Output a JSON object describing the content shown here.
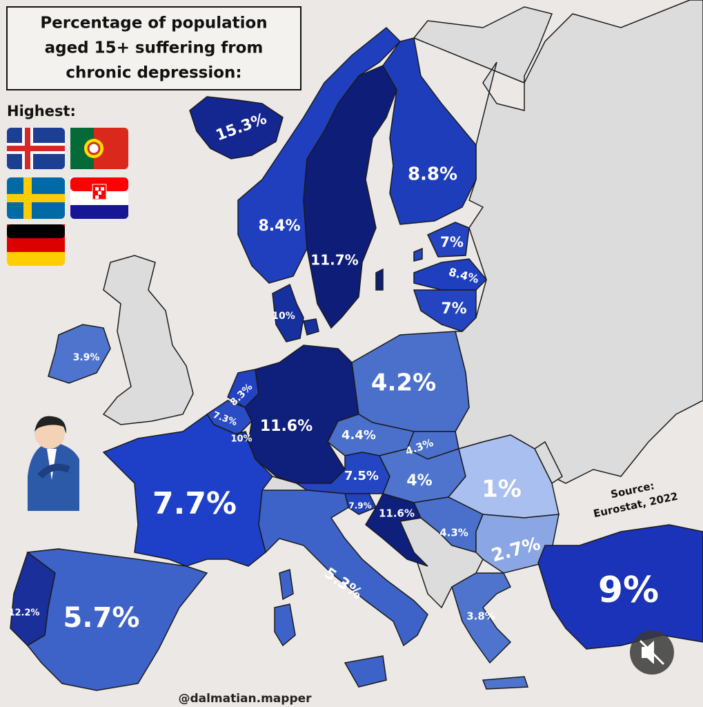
{
  "title": [
    "Percentage of population",
    "aged 15+ suffering from",
    "chronic depression:"
  ],
  "highest_label": "Highest:",
  "regions": [
    {
      "label": "15.3%",
      "color": "#14268f"
    },
    {
      "label": "8.4%",
      "color": "#1f3fbf"
    },
    {
      "label": "11.7%",
      "color": "#0e1e78"
    },
    {
      "label": "8.8%",
      "color": "#1e3dbb"
    },
    {
      "label": "7%",
      "color": "#2444c0"
    },
    {
      "label": "8.4%",
      "color": "#1f3fbf"
    },
    {
      "label": "7%",
      "color": "#2444c0"
    },
    {
      "label": "10%",
      "color": "#16309e"
    },
    {
      "label": "3.9%",
      "color": "#4e74ce"
    },
    {
      "label": "8.3%",
      "color": "#2242c0"
    },
    {
      "label": "7.3%",
      "color": "#2a4cc4"
    },
    {
      "label": "10%",
      "color": "#16309e"
    },
    {
      "label": "11.6%",
      "color": "#0f1f7c"
    },
    {
      "label": "4.2%",
      "color": "#4a70cc"
    },
    {
      "label": "4.4%",
      "color": "#4a70cc"
    },
    {
      "label": "4.3%",
      "color": "#4a70cc"
    },
    {
      "label": "7.5%",
      "color": "#2446c2"
    },
    {
      "label": "4%",
      "color": "#4e74ce"
    },
    {
      "label": "1%",
      "color": "#a9bff0"
    },
    {
      "label": "7.7%",
      "color": "#1e40c8"
    },
    {
      "label": "7.9%",
      "color": "#2244bb"
    },
    {
      "label": "11.6%",
      "color": "#0f1f7c"
    },
    {
      "label": "4.3%",
      "color": "#4a70cc"
    },
    {
      "label": "2.7%",
      "color": "#8aa6e4"
    },
    {
      "label": "5.3%",
      "color": "#3e63c8"
    },
    {
      "label": "12.2%",
      "color": "#1a2f9a"
    },
    {
      "label": "5.7%",
      "color": "#3e63c8"
    },
    {
      "label": "3.8%",
      "color": "#4e74ce"
    },
    {
      "label": "9%",
      "color": "#1a33b8"
    }
  ],
  "source": [
    "Source:",
    "Eurostat, 2022"
  ],
  "credit": "@dalmatian.mapper"
}
